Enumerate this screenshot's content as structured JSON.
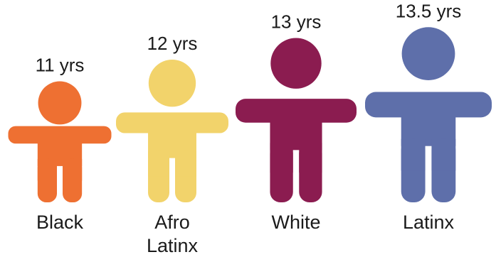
{
  "chart_data": {
    "type": "pictograph",
    "unit": "yrs",
    "categories": [
      [
        "Black"
      ],
      [
        "Afro",
        "Latinx"
      ],
      [
        "White"
      ],
      [
        "Latinx"
      ]
    ],
    "values": [
      11,
      12,
      13,
      13.5
    ],
    "value_labels": [
      "11 yrs",
      "12 yrs",
      "13 yrs",
      "13.5 yrs"
    ],
    "colors": [
      "#EE7032",
      "#F2D36B",
      "#8B1C50",
      "#5E6FAA"
    ]
  }
}
